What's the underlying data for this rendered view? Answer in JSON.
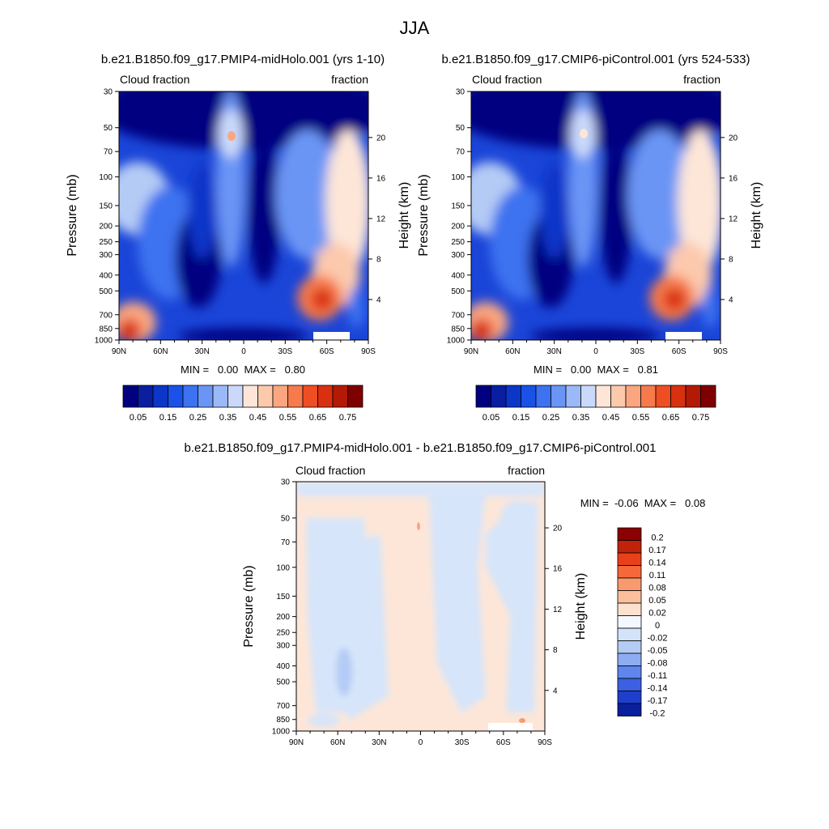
{
  "figure": {
    "title": "JJA"
  },
  "colorscales": {
    "fraction_colors": [
      "#000080",
      "#0a1ea0",
      "#0b36c8",
      "#1a52e8",
      "#3d72f0",
      "#6a95f5",
      "#9bb8f8",
      "#cad9fb",
      "#fde6d8",
      "#fcc9ad",
      "#fba680",
      "#f77a4c",
      "#ef4d22",
      "#d9300f",
      "#b31a05",
      "#7f0000"
    ],
    "fraction_labels": [
      "0.05",
      "0.15",
      "0.25",
      "0.35",
      "0.45",
      "0.55",
      "0.65",
      "0.75"
    ],
    "diff_colors": [
      "#8b0000",
      "#c0230a",
      "#e8411a",
      "#f5683a",
      "#f89a6e",
      "#fbbf9b",
      "#fde1cf",
      "#f4f7fd",
      "#d2e3fa",
      "#b4cbf5",
      "#8cadf1",
      "#5f86ec",
      "#3b61e2",
      "#1e3fcc",
      "#0a1f9e"
    ],
    "diff_labels": [
      "0.2",
      "0.17",
      "0.14",
      "0.11",
      "0.08",
      "0.05",
      "0.02",
      "0",
      "-0.02",
      "-0.05",
      "-0.08",
      "-0.11",
      "-0.14",
      "-0.17",
      "-0.2"
    ]
  },
  "chart_data": [
    {
      "type": "heatmap",
      "id": "midholo",
      "title": "b.e21.B1850.f09_g17.PMIP4-midHolo.001 (yrs 1-10)",
      "left_label": "Cloud fraction",
      "right_label": "fraction",
      "xlabel": "",
      "ylabel": "Pressure (mb)",
      "y2label": "Height (km)",
      "x_ticks": [
        "90N",
        "60N",
        "30N",
        "0",
        "30S",
        "60S",
        "90S"
      ],
      "y_ticks": [
        "30",
        "50",
        "70",
        "100",
        "150",
        "200",
        "250",
        "300",
        "400",
        "500",
        "700",
        "850",
        "1000"
      ],
      "y2_ticks": [
        "20",
        "16",
        "12",
        "8",
        "4"
      ],
      "stats": "MIN =   0.00  MAX =   0.80",
      "min": 0.0,
      "max": 0.8
    },
    {
      "type": "heatmap",
      "id": "picontrol",
      "title": "b.e21.B1850.f09_g17.CMIP6-piControl.001 (yrs 524-533)",
      "left_label": "Cloud fraction",
      "right_label": "fraction",
      "xlabel": "",
      "ylabel": "Pressure (mb)",
      "y2label": "Height (km)",
      "x_ticks": [
        "90N",
        "60N",
        "30N",
        "0",
        "30S",
        "60S",
        "90S"
      ],
      "y_ticks": [
        "30",
        "50",
        "70",
        "100",
        "150",
        "200",
        "250",
        "300",
        "400",
        "500",
        "700",
        "850",
        "1000"
      ],
      "y2_ticks": [
        "20",
        "16",
        "12",
        "8",
        "4"
      ],
      "stats": "MIN =   0.00  MAX =   0.81",
      "min": 0.0,
      "max": 0.81
    },
    {
      "type": "heatmap",
      "id": "difference",
      "title": "b.e21.B1850.f09_g17.PMIP4-midHolo.001 - b.e21.B1850.f09_g17.CMIP6-piControl.001",
      "left_label": "Cloud fraction",
      "right_label": "fraction",
      "xlabel": "",
      "ylabel": "Pressure (mb)",
      "y2label": "Height (km)",
      "x_ticks": [
        "90N",
        "60N",
        "30N",
        "0",
        "30S",
        "60S",
        "90S"
      ],
      "y_ticks": [
        "30",
        "50",
        "70",
        "100",
        "150",
        "200",
        "250",
        "300",
        "400",
        "500",
        "700",
        "850",
        "1000"
      ],
      "y2_ticks": [
        "20",
        "16",
        "12",
        "8",
        "4"
      ],
      "stats": "MIN =  -0.06  MAX =   0.08",
      "min": -0.06,
      "max": 0.08
    }
  ]
}
